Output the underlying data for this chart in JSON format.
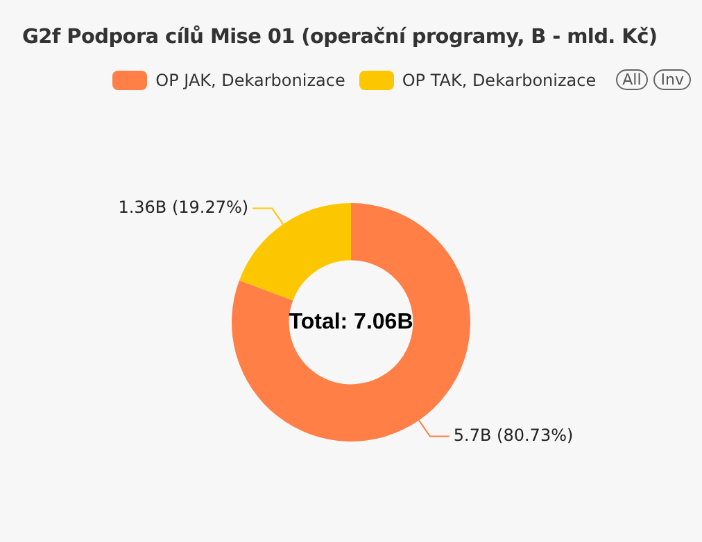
{
  "chart_data": {
    "type": "donut",
    "title": "G2f Podpora cílů Mise 01 (operační programy, B - mld. Kč)",
    "categories": [
      "OP JAK, Dekarbonizace",
      "OP TAK, Dekarbonizace"
    ],
    "values": [
      80.73,
      19.27
    ],
    "colors": [
      "#ff7f47",
      "#fdc700"
    ],
    "value_labels": [
      "5.7B (80.73%)",
      "1.36B (19.27%)"
    ],
    "legend": "top right",
    "annotations": [
      "Total: 7.06B",
      "All",
      "Inv"
    ]
  }
}
